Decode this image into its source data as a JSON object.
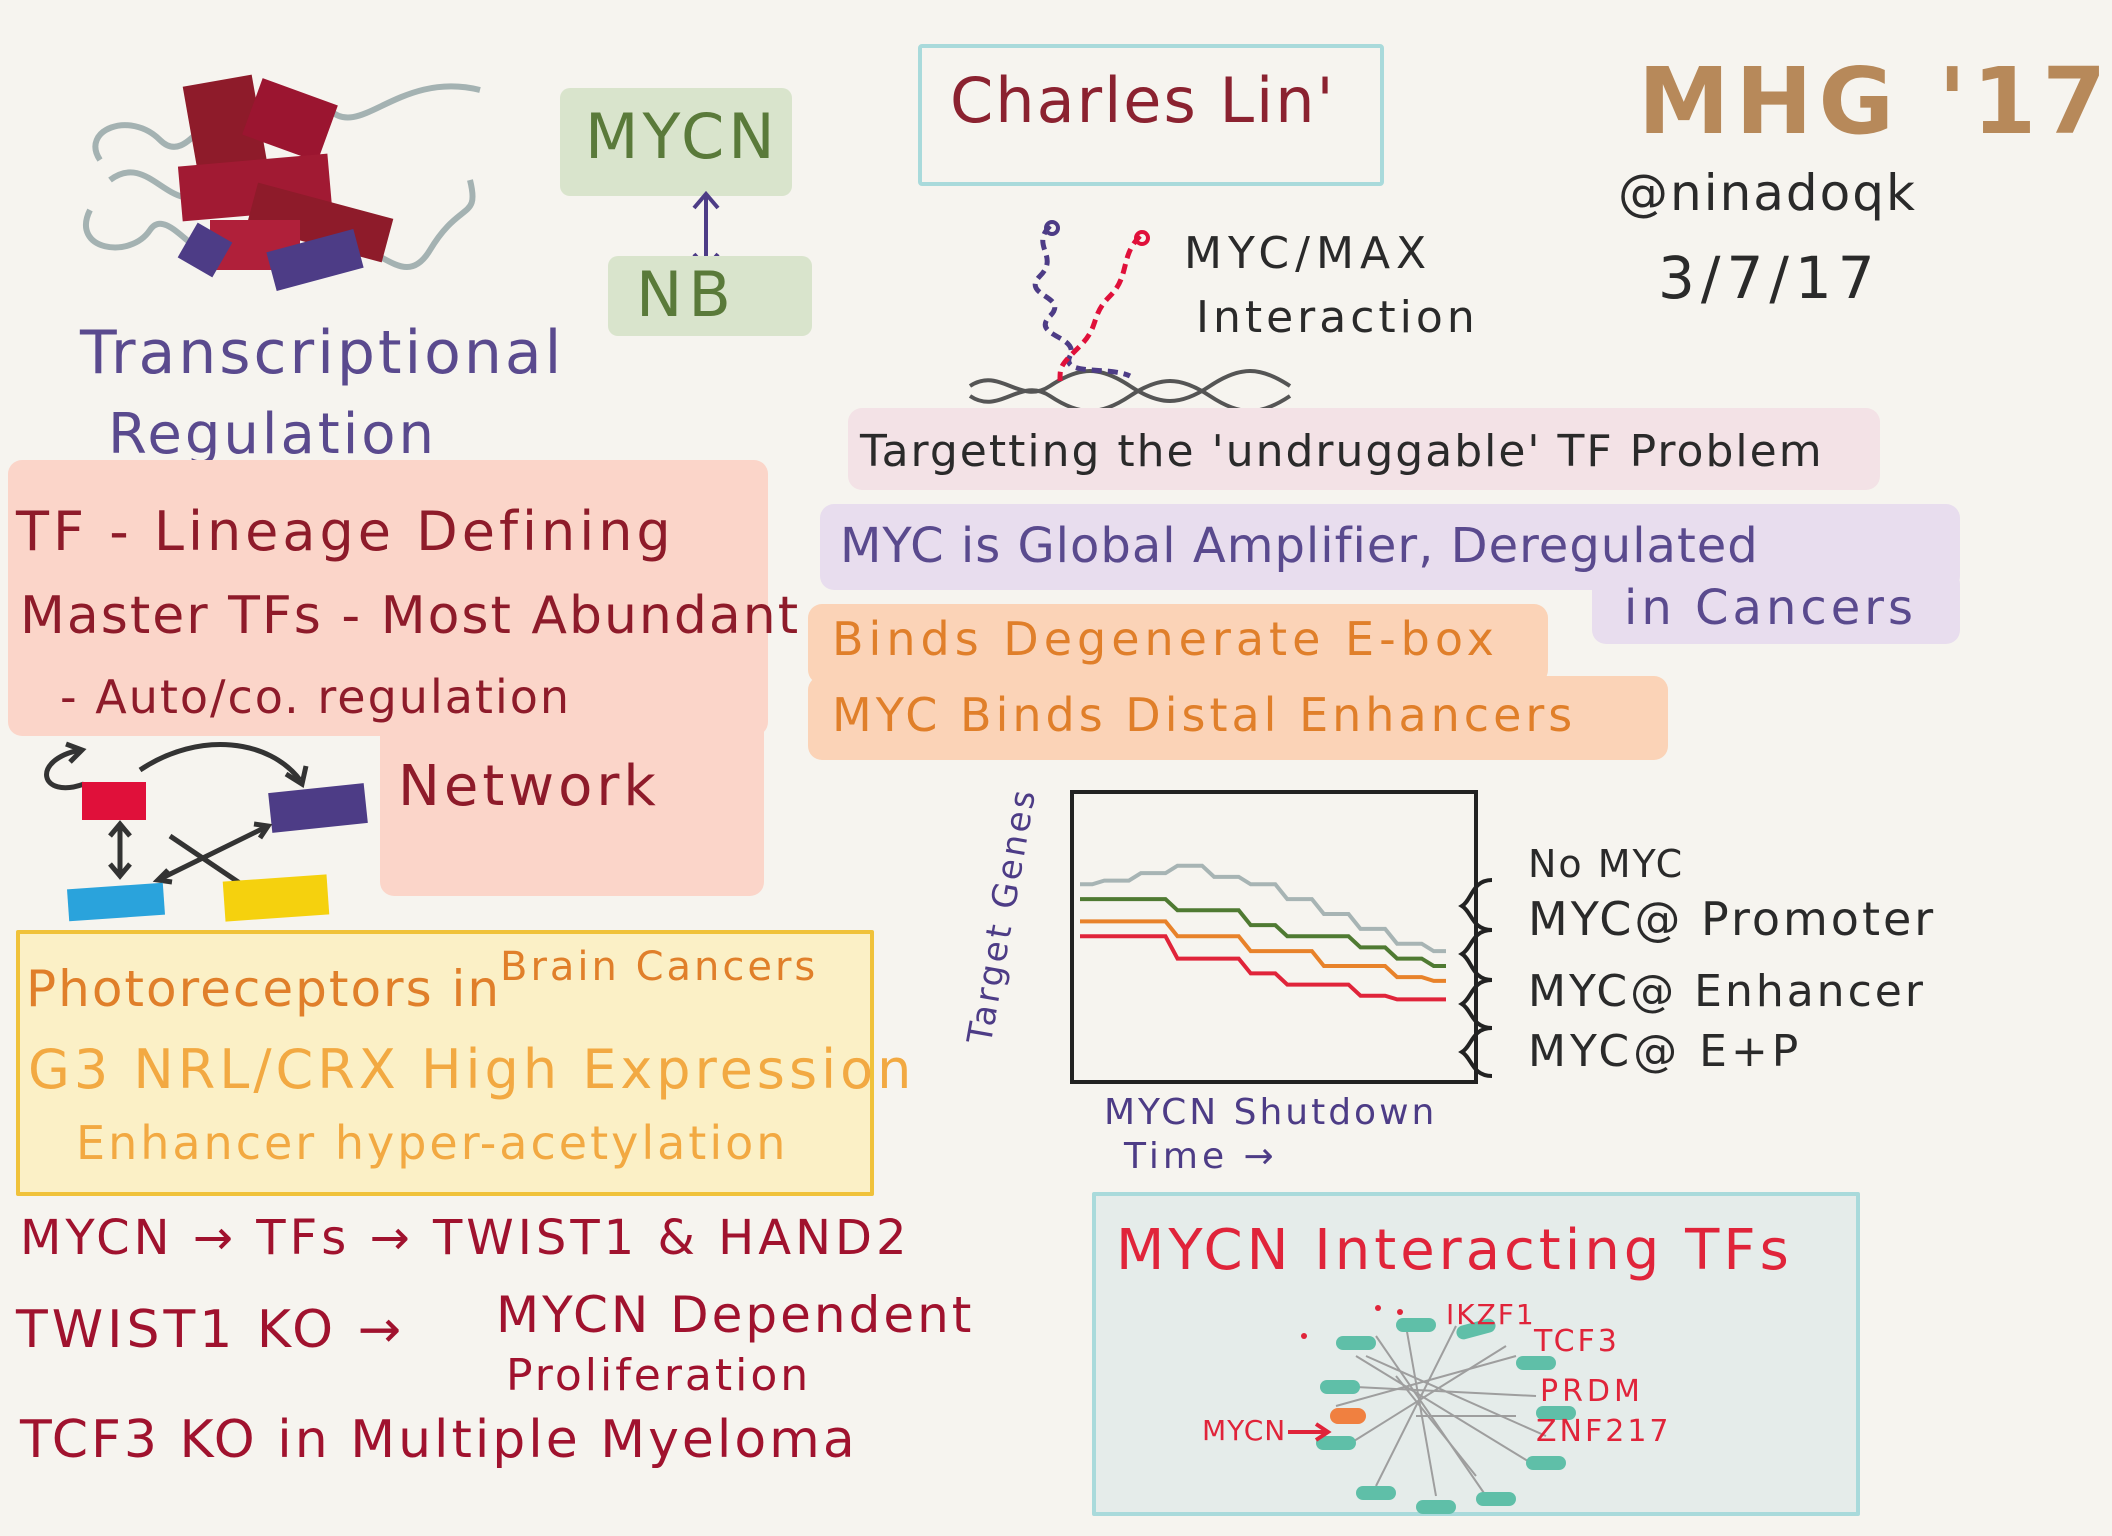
{
  "header": {
    "speaker": "Charles Lin'",
    "event": "MHG '17",
    "handle": "@ninadoqk",
    "date": "3/7/17"
  },
  "left": {
    "topic_line1": "Transcriptional",
    "topic_line2": "Regulation",
    "tf_line1": "TF - Lineage Defining",
    "tf_line2": "Master TFs - Most Abundant",
    "tf_line3": "- Auto/co. regulation",
    "network_label": "Network",
    "photo_line1": "Photoreceptors in",
    "photo_line1b": "Brain Cancers",
    "photo_line2": "G3 NRL/CRX  High Expression",
    "photo_line3": "Enhancer hyper-acetylation",
    "bottom_line1": "MYCN → TFs → TWIST1 & HAND2",
    "bottom_line2a": "TWIST1 KO →",
    "bottom_line2b": "MYCN Dependent",
    "bottom_line2c": "Proliferation",
    "bottom_line3": "TCF3  KO  in Multiple Myeloma"
  },
  "mycn_nb": {
    "top": "MYCN",
    "bottom": "NB"
  },
  "right": {
    "myc_max_line1": "MYC/MAX",
    "myc_max_line2": "Interaction",
    "undruggable": "Targetting the 'undruggable' TF Problem",
    "amplifier_line1": "MYC is Global Amplifier, Deregulated",
    "amplifier_line2": "in Cancers",
    "binds_line1": "Binds Degenerate E-box",
    "binds_line2": "MYC Binds Distal Enhancers"
  },
  "chart": {
    "ylabel": "Target Genes",
    "xlabel_line1": "MYCN Shutdown",
    "xlabel_line2": "Time →",
    "legend": [
      "No MYC",
      "MYC@ Promoter",
      "MYC@ Enhancer",
      "MYC@ E+P"
    ],
    "colors": [
      "#a7b4b4",
      "#4f7a32",
      "#e8822a",
      "#e0243a"
    ]
  },
  "chart_data": {
    "type": "line",
    "xlabel": "MYCN Shutdown Time →",
    "ylabel": "Target Genes",
    "x": [
      0,
      1,
      2,
      3,
      4,
      5,
      6,
      7,
      8,
      9,
      10
    ],
    "series": [
      {
        "name": "No MYC",
        "values": [
          8.0,
          8.1,
          8.3,
          8.5,
          8.2,
          8.0,
          7.6,
          7.2,
          6.8,
          6.4,
          6.2
        ]
      },
      {
        "name": "MYC@ Promoter",
        "values": [
          7.6,
          7.6,
          7.6,
          7.3,
          7.3,
          6.9,
          6.6,
          6.6,
          6.3,
          6.0,
          5.8
        ]
      },
      {
        "name": "MYC@ Enhancer",
        "values": [
          7.0,
          7.0,
          7.0,
          6.6,
          6.6,
          6.2,
          6.2,
          5.8,
          5.8,
          5.5,
          5.4
        ]
      },
      {
        "name": "MYC@ E+P",
        "values": [
          6.6,
          6.6,
          6.6,
          6.0,
          6.0,
          5.6,
          5.3,
          5.3,
          5.0,
          4.9,
          4.9
        ]
      }
    ]
  },
  "network_box": {
    "title": "MYCN Interacting TFs",
    "labels": [
      "IKZF1",
      "TCF3",
      "PRDM",
      "ZNF217"
    ],
    "mycn_label": "MYCN"
  }
}
